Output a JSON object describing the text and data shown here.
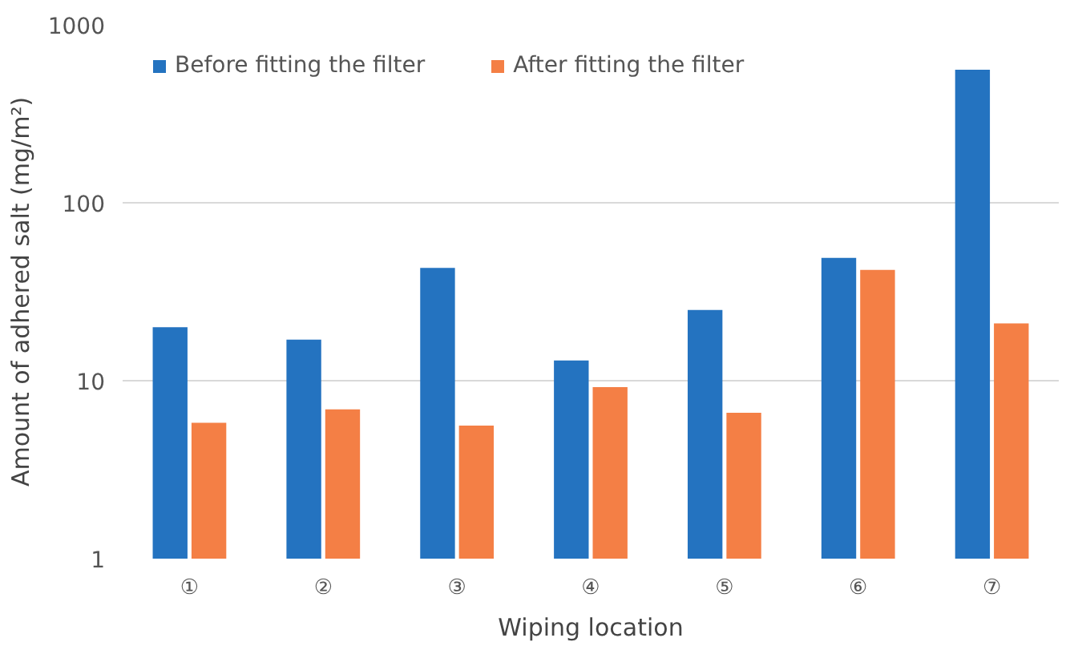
{
  "chart_data": {
    "type": "bar",
    "xlabel": "Wiping location",
    "ylabel": "Amount of adhered salt (mg/m²)",
    "categories": [
      "①",
      "②",
      "③",
      "④",
      "⑤",
      "⑥",
      "⑦"
    ],
    "series": [
      {
        "name": "Before fitting the filter",
        "color": "#2473c0",
        "values": [
          20,
          17,
          43,
          13,
          25,
          49,
          560
        ]
      },
      {
        "name": "After fitting the filter",
        "color": "#f47f45",
        "values": [
          5.8,
          6.9,
          5.6,
          9.2,
          6.6,
          42,
          21
        ]
      }
    ],
    "log": "y",
    "ylim": [
      1,
      1000
    ],
    "yticks": [
      1,
      10,
      100,
      1000
    ],
    "grid": "y",
    "legend": "top left"
  }
}
